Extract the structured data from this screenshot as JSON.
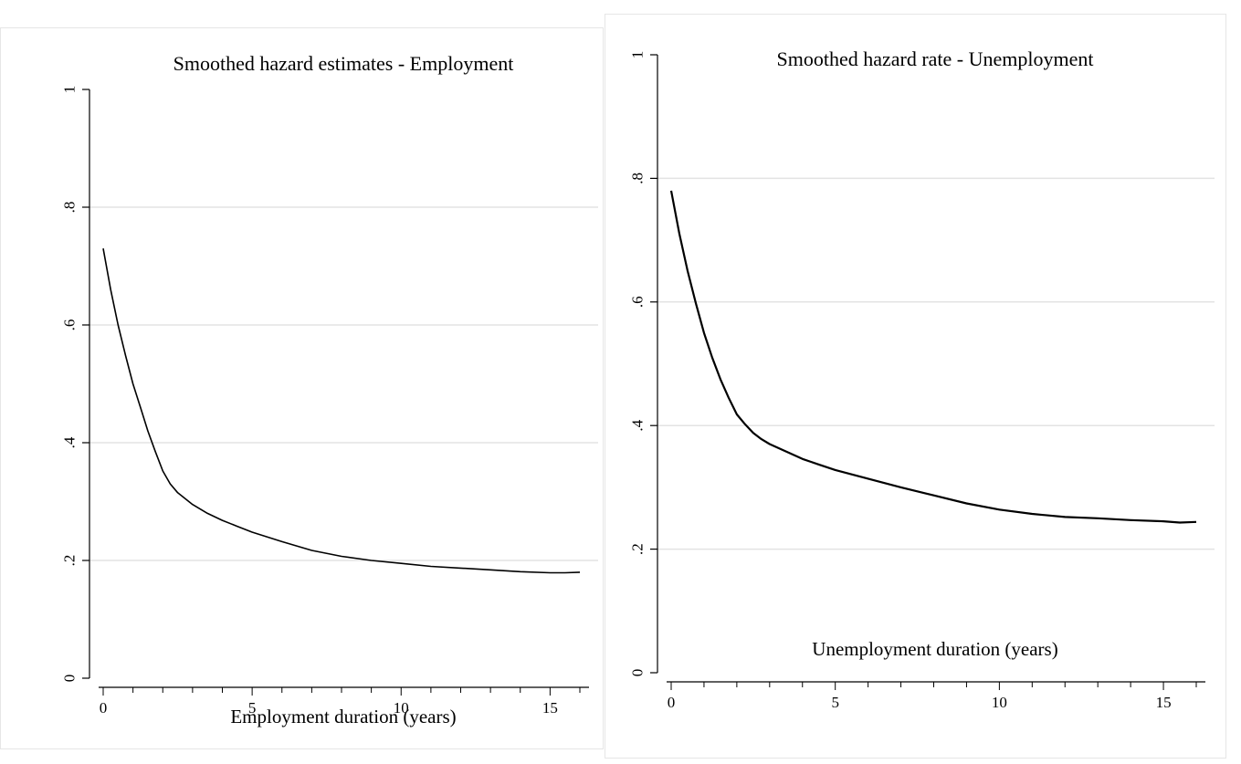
{
  "chart_data": [
    {
      "type": "line",
      "title": "Smoothed hazard estimates  - Employment",
      "xlabel": "Employment duration (years)",
      "ylabel": "",
      "xlim": [
        0,
        16
      ],
      "ylim": [
        0,
        1
      ],
      "xticks": [
        0,
        5,
        10,
        15
      ],
      "xtick_labels": [
        "0",
        "5",
        "10",
        "15"
      ],
      "yticks": [
        0,
        0.2,
        0.4,
        0.6,
        0.8,
        1
      ],
      "ytick_labels": [
        "0",
        ".2",
        ".4",
        ".6",
        ".8",
        "1"
      ],
      "grid": "horizontal",
      "line_color": "#000000",
      "series": [
        {
          "x": [
            0,
            0.25,
            0.5,
            0.75,
            1,
            1.25,
            1.5,
            1.75,
            2,
            2.25,
            2.5,
            3,
            3.5,
            4,
            4.5,
            5,
            6,
            7,
            8,
            9,
            10,
            11,
            12,
            13,
            14,
            15,
            15.5,
            16
          ],
          "y": [
            0.73,
            0.66,
            0.6,
            0.548,
            0.5,
            0.46,
            0.42,
            0.385,
            0.352,
            0.33,
            0.315,
            0.295,
            0.28,
            0.268,
            0.258,
            0.248,
            0.232,
            0.217,
            0.207,
            0.2,
            0.195,
            0.19,
            0.187,
            0.184,
            0.181,
            0.179,
            0.179,
            0.18
          ]
        }
      ]
    },
    {
      "type": "line",
      "title": "Smoothed hazard rate - Unemployment",
      "xlabel": "Unemployment duration (years)",
      "ylabel": "",
      "xlim": [
        0,
        16
      ],
      "ylim": [
        0,
        1
      ],
      "xticks": [
        0,
        5,
        10,
        15
      ],
      "xtick_labels": [
        "0",
        "5",
        "10",
        "15"
      ],
      "yticks": [
        0,
        0.2,
        0.4,
        0.6,
        0.8,
        1
      ],
      "ytick_labels": [
        "0",
        ".2",
        ".4",
        ".6",
        ".8",
        "1"
      ],
      "grid": "horizontal",
      "line_color": "#000000",
      "series": [
        {
          "x": [
            0,
            0.25,
            0.5,
            0.75,
            1,
            1.25,
            1.5,
            1.75,
            2,
            2.25,
            2.5,
            2.75,
            3,
            3.5,
            4,
            4.5,
            5,
            6,
            7,
            8,
            9,
            10,
            11,
            12,
            13,
            14,
            15,
            15.5,
            16
          ],
          "y": [
            0.78,
            0.71,
            0.65,
            0.598,
            0.55,
            0.51,
            0.475,
            0.445,
            0.418,
            0.402,
            0.388,
            0.378,
            0.37,
            0.358,
            0.346,
            0.337,
            0.328,
            0.314,
            0.3,
            0.287,
            0.274,
            0.264,
            0.257,
            0.252,
            0.25,
            0.247,
            0.245,
            0.243,
            0.244
          ]
        }
      ]
    }
  ]
}
